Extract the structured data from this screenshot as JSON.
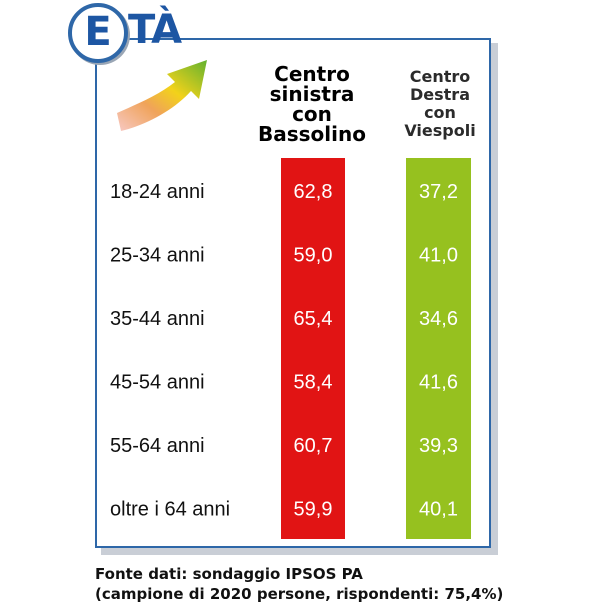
{
  "title": {
    "initial": "E",
    "rest": "TÀ"
  },
  "icon": "trend-arrow-icon",
  "colors": {
    "frame": "#2e67a8",
    "left_column": "#e11414",
    "right_column": "#96c11f",
    "title": "#1d56a3"
  },
  "columns": {
    "left_header": "Centro\nsinistra\ncon\nBassolino",
    "right_header": "Centro\nDestra\ncon\nViespoli"
  },
  "chart_data": {
    "type": "table",
    "categories": [
      "18-24 anni",
      "25-34 anni",
      "35-44 anni",
      "45-54 anni",
      "55-64 anni",
      "oltre i 64 anni"
    ],
    "series": [
      {
        "name": "Centro sinistra con Bassolino",
        "values": [
          62.8,
          59.0,
          65.4,
          58.4,
          60.7,
          59.9
        ],
        "labels": [
          "62,8",
          "59,0",
          "65,4",
          "58,4",
          "60,7",
          "59,9"
        ]
      },
      {
        "name": "Centro Destra con Viespoli",
        "values": [
          37.2,
          41.0,
          34.6,
          41.6,
          39.3,
          40.1
        ],
        "labels": [
          "37,2",
          "41,0",
          "34,6",
          "41,6",
          "39,3",
          "40,1"
        ]
      }
    ]
  },
  "footer": {
    "line1": "Fonte dati: sondaggio IPSOS PA",
    "line2": "(campione di 2020 persone, rispondenti: 75,4%)"
  }
}
